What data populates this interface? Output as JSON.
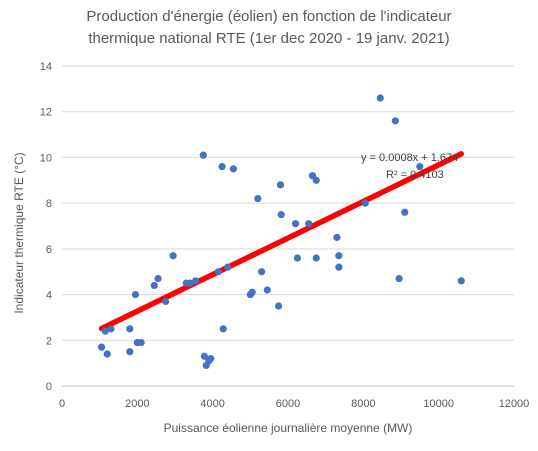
{
  "chart_data": {
    "type": "scatter",
    "title_lines": [
      "Production d'énergie (éolien) en fonction de l'indicateur",
      "thermique national RTE (1er dec 2020 - 19 janv. 2021)"
    ],
    "xlabel": "Puissance éolienne journalière moyenne (MW)",
    "ylabel": "Indicateur thermique RTE (°C)",
    "xlim": [
      0,
      12000
    ],
    "ylim": [
      0,
      14
    ],
    "x_ticks": [
      "0",
      "2000",
      "4000",
      "6000",
      "8000",
      "10000",
      "12000"
    ],
    "y_ticks": [
      "0",
      "2",
      "4",
      "6",
      "8",
      "10",
      "12",
      "14"
    ],
    "grid": "horizontal",
    "marker_color": "#4472c4",
    "trendline_color": "#ff0000",
    "trendline": {
      "slope": 0.0008,
      "intercept": 1.674,
      "x_range": [
        1050,
        10600
      ]
    },
    "annotations": [
      "y = 0.0008x + 1.674",
      "R² = 0.4103"
    ],
    "points": [
      [
        1050,
        1.7
      ],
      [
        1150,
        2.4
      ],
      [
        1200,
        1.4
      ],
      [
        1300,
        2.5
      ],
      [
        1800,
        2.5
      ],
      [
        1800,
        1.5
      ],
      [
        1950,
        4.0
      ],
      [
        2000,
        1.9
      ],
      [
        2100,
        1.9
      ],
      [
        2450,
        4.4
      ],
      [
        2550,
        4.7
      ],
      [
        2750,
        3.7
      ],
      [
        2950,
        5.7
      ],
      [
        3300,
        4.5
      ],
      [
        3400,
        4.5
      ],
      [
        3550,
        4.6
      ],
      [
        3750,
        10.1
      ],
      [
        3780,
        1.3
      ],
      [
        3830,
        0.9
      ],
      [
        3900,
        1.1
      ],
      [
        3950,
        1.2
      ],
      [
        4150,
        5.0
      ],
      [
        4250,
        9.6
      ],
      [
        4280,
        2.5
      ],
      [
        4400,
        5.2
      ],
      [
        4550,
        9.5
      ],
      [
        5000,
        4.0
      ],
      [
        5050,
        4.1
      ],
      [
        5200,
        8.2
      ],
      [
        5300,
        5.0
      ],
      [
        5450,
        4.2
      ],
      [
        5750,
        3.5
      ],
      [
        5800,
        8.8
      ],
      [
        5820,
        7.5
      ],
      [
        6200,
        7.1
      ],
      [
        6250,
        5.6
      ],
      [
        6550,
        7.1
      ],
      [
        6650,
        9.2
      ],
      [
        6750,
        9.0
      ],
      [
        6750,
        5.6
      ],
      [
        7300,
        6.5
      ],
      [
        7350,
        5.7
      ],
      [
        7350,
        5.2
      ],
      [
        8050,
        8.0
      ],
      [
        8450,
        12.6
      ],
      [
        8850,
        11.6
      ],
      [
        8950,
        4.7
      ],
      [
        9100,
        7.6
      ],
      [
        9500,
        9.6
      ],
      [
        10600,
        4.6
      ]
    ]
  }
}
